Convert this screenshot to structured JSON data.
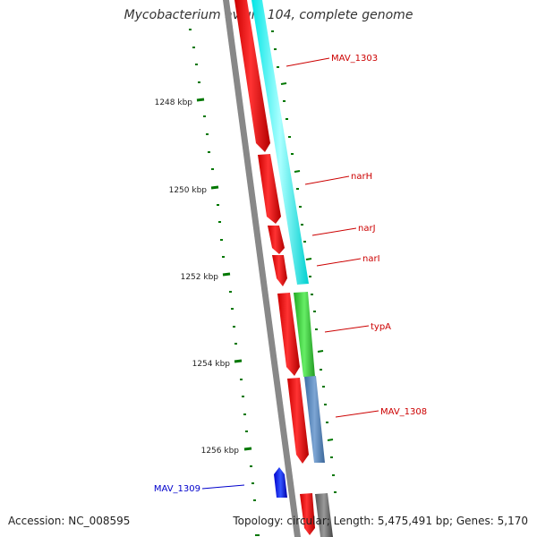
{
  "title": "Mycobacterium avium 104, complete genome",
  "footer": {
    "accession": "Accession: NC_008595",
    "summary": "Topology: circular; Length: 5,475,491 bp; Genes: 5,170"
  },
  "colors": {
    "cds_forward": "#ff0000",
    "cds_reverse": "#ff0000",
    "gene_label": "#cc0000",
    "highlight_label": "#0000cc",
    "tick": "#007700",
    "backbone": "#888888",
    "band_cyan": "#00ffff",
    "band_green": "#33cc33",
    "band_steelblue": "#4f81bd",
    "band_gray": "#666666",
    "highlight_feature": "#0000ff"
  },
  "scale": {
    "ticks": [
      "1248 kbp",
      "1250 kbp",
      "1252 kbp",
      "1254 kbp",
      "1256 kbp"
    ]
  },
  "genes": [
    {
      "name": "MAV_1303"
    },
    {
      "name": "narH"
    },
    {
      "name": "narJ"
    },
    {
      "name": "narI"
    },
    {
      "name": "typA"
    },
    {
      "name": "MAV_1308"
    }
  ],
  "highlight": {
    "name": "MAV_1309"
  }
}
